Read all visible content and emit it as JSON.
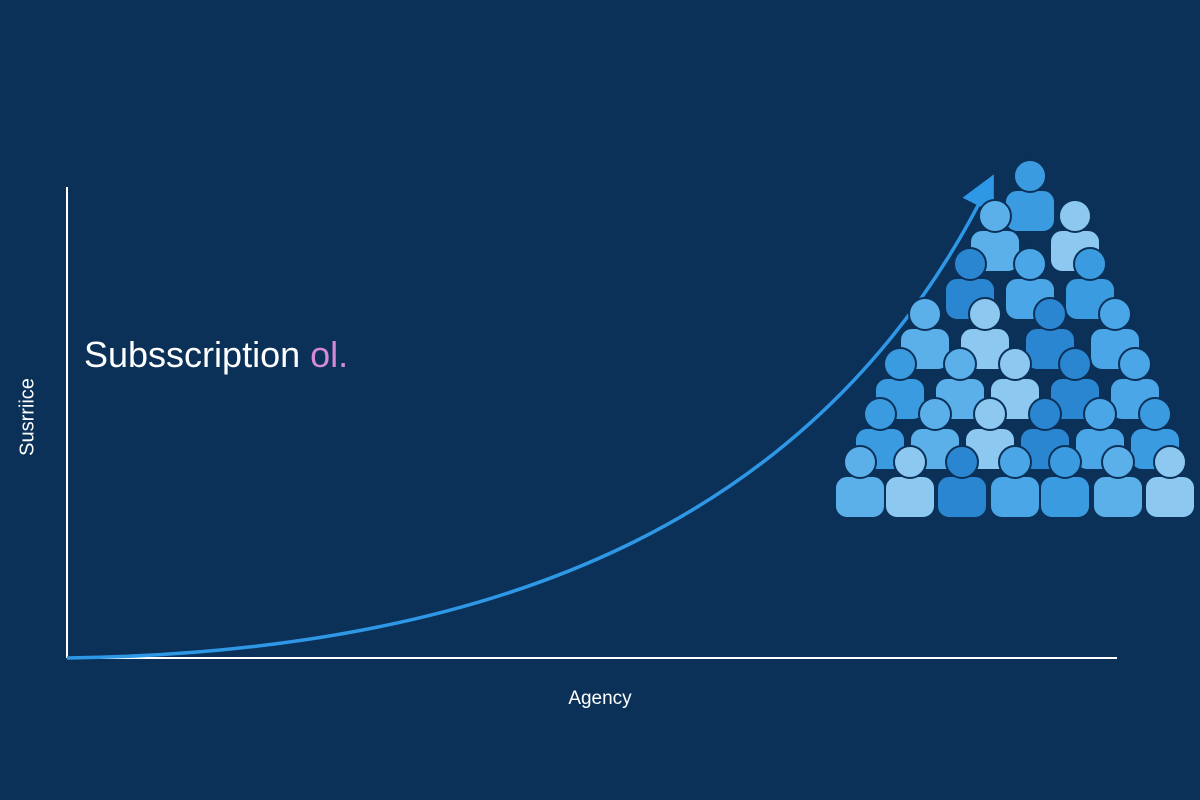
{
  "title": {
    "text": "Subsscription ",
    "accent": "ol."
  },
  "y_axis_label": "Susrriice",
  "x_axis_label": "Agency"
}
